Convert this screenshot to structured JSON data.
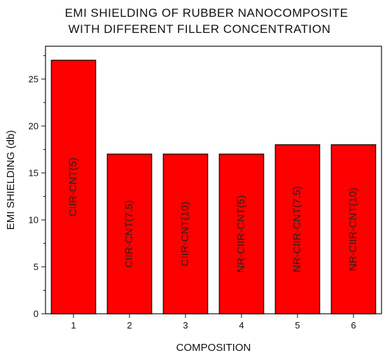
{
  "chart_data": {
    "type": "bar",
    "title_lines": [
      "EMI SHIELDING OF  RUBBER NANOCOMPOSITE",
      "WITH DIFFERENT FILLER CONCENTRATION"
    ],
    "xlabel": "COMPOSITION",
    "ylabel": "EMI SHIELDING (db)",
    "categories": [
      "1",
      "2",
      "3",
      "4",
      "5",
      "6"
    ],
    "values": [
      27,
      17,
      17,
      17,
      18,
      18
    ],
    "bar_labels": [
      "CIIR-CNT(5)",
      "CIIR-CNT(7.5)",
      "CIIR-CNT(10)",
      "NR-CIIR-CNT(5)",
      "NR-CIIR-CNT(7.5)",
      "NR-CIIR-CNT(10)"
    ],
    "ylim": [
      0,
      28.5
    ],
    "yticks": [
      0,
      5,
      10,
      15,
      20,
      25
    ],
    "xlim": [
      0.5,
      6.5
    ],
    "grid": false,
    "bar_color": "#ff0000",
    "bar_edge_color": "#2a1208"
  }
}
